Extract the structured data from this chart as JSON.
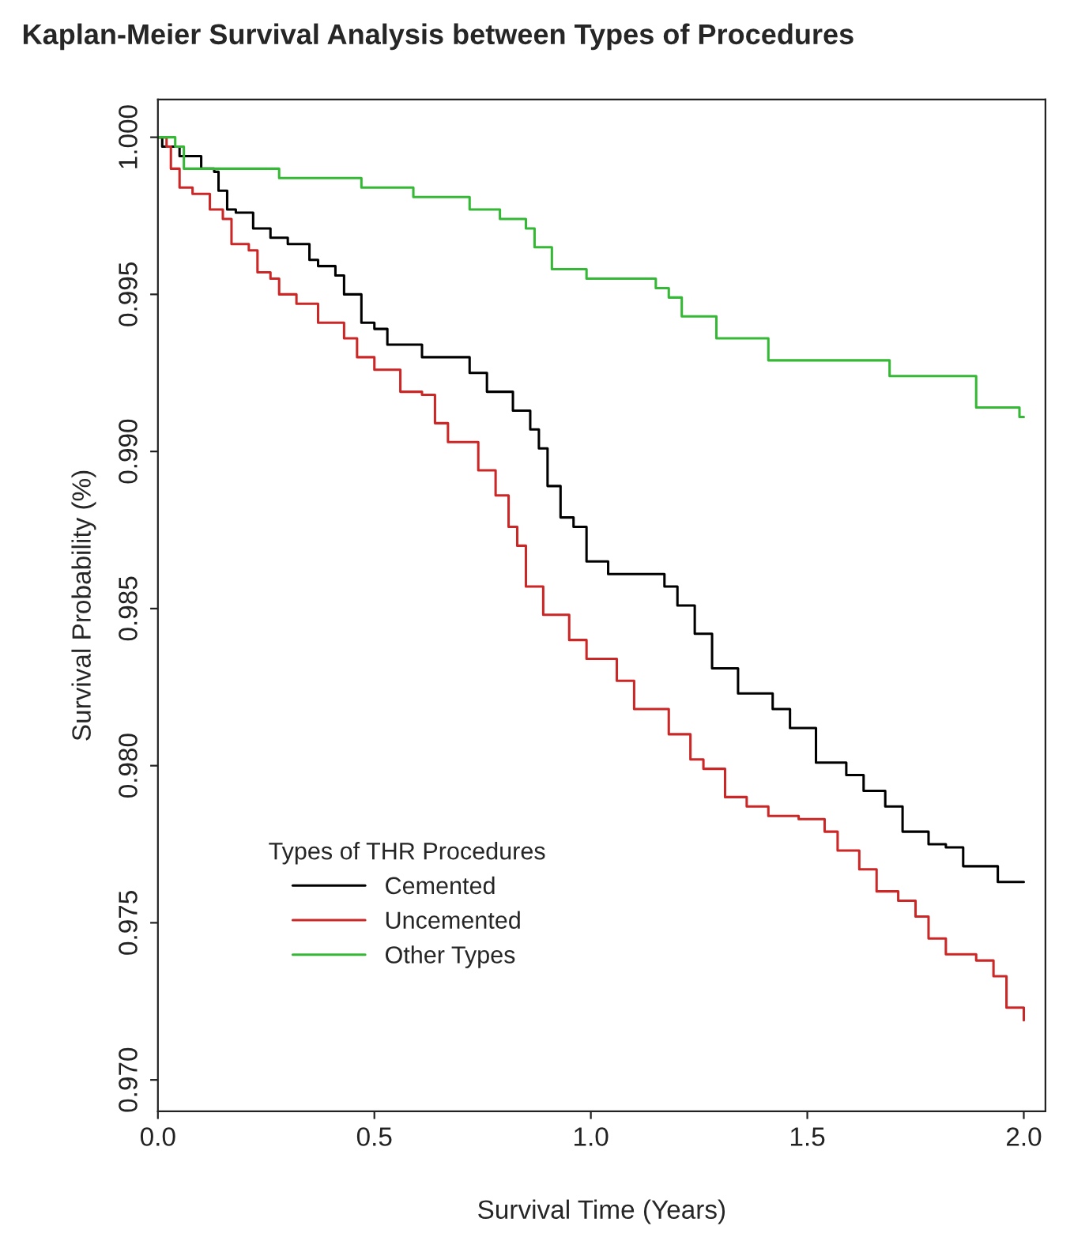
{
  "chart_data": {
    "type": "step",
    "title": "Kaplan-Meier Survival Analysis between Types of Procedures",
    "xlabel": "Survival Time (Years)",
    "ylabel": "Survival Probability (%)",
    "legend_title": "Types of THR Procedures",
    "legend": "bottom left",
    "grid": false,
    "marker": "none",
    "line_style": "solid",
    "xlim": [
      0,
      2.05
    ],
    "xticks": [
      {
        "value": 0,
        "label": "0.0"
      },
      {
        "value": 0.5,
        "label": "0.5"
      },
      {
        "value": 1.0,
        "label": "1.0"
      },
      {
        "value": 1.5,
        "label": "1.5"
      },
      {
        "value": 2.0,
        "label": "2.0"
      }
    ],
    "ylim": [
      0.969,
      1.0012
    ],
    "yticks": [
      {
        "value": 0.97,
        "label": "0.970"
      },
      {
        "value": 0.975,
        "label": "0.975"
      },
      {
        "value": 0.98,
        "label": "0.980"
      },
      {
        "value": 0.985,
        "label": "0.985"
      },
      {
        "value": 0.99,
        "label": "0.990"
      },
      {
        "value": 0.995,
        "label": "0.995"
      },
      {
        "value": 1.0,
        "label": "1.000"
      }
    ],
    "series": [
      {
        "name": "Cemented",
        "color": "#000000",
        "x": [
          0,
          0.01,
          0.05,
          0.1,
          0.13,
          0.14,
          0.16,
          0.18,
          0.22,
          0.26,
          0.3,
          0.35,
          0.37,
          0.41,
          0.43,
          0.47,
          0.5,
          0.53,
          0.61,
          0.72,
          0.76,
          0.82,
          0.86,
          0.88,
          0.9,
          0.93,
          0.96,
          0.99,
          1.04,
          1.17,
          1.2,
          1.24,
          1.28,
          1.34,
          1.42,
          1.46,
          1.52,
          1.59,
          1.63,
          1.68,
          1.72,
          1.78,
          1.82,
          1.86,
          1.94,
          2.0
        ],
        "values": [
          1.0,
          0.9997,
          0.9994,
          0.999,
          0.9989,
          0.9983,
          0.9977,
          0.9976,
          0.9971,
          0.9968,
          0.9966,
          0.9961,
          0.9959,
          0.9956,
          0.995,
          0.9941,
          0.9939,
          0.9934,
          0.993,
          0.9925,
          0.9919,
          0.9913,
          0.9907,
          0.9901,
          0.9889,
          0.9879,
          0.9876,
          0.9865,
          0.9861,
          0.9857,
          0.9851,
          0.9842,
          0.9831,
          0.9823,
          0.9818,
          0.9812,
          0.9801,
          0.9797,
          0.9792,
          0.9787,
          0.9779,
          0.9775,
          0.9774,
          0.9768,
          0.9763,
          0.9763
        ]
      },
      {
        "name": "Uncemented",
        "color": "#cc2727",
        "x": [
          0,
          0.02,
          0.03,
          0.05,
          0.08,
          0.12,
          0.15,
          0.17,
          0.21,
          0.23,
          0.26,
          0.28,
          0.32,
          0.37,
          0.43,
          0.46,
          0.5,
          0.56,
          0.61,
          0.64,
          0.67,
          0.74,
          0.78,
          0.81,
          0.83,
          0.85,
          0.89,
          0.95,
          0.99,
          1.06,
          1.1,
          1.18,
          1.23,
          1.26,
          1.31,
          1.36,
          1.41,
          1.48,
          1.54,
          1.57,
          1.62,
          1.66,
          1.71,
          1.75,
          1.78,
          1.82,
          1.89,
          1.93,
          1.96,
          2.0
        ],
        "values": [
          1.0,
          0.9997,
          0.999,
          0.9984,
          0.9982,
          0.9977,
          0.9974,
          0.9966,
          0.9964,
          0.9957,
          0.9955,
          0.995,
          0.9947,
          0.9941,
          0.9936,
          0.993,
          0.9926,
          0.9919,
          0.9918,
          0.9909,
          0.9903,
          0.9894,
          0.9886,
          0.9876,
          0.987,
          0.9857,
          0.9848,
          0.984,
          0.9834,
          0.9827,
          0.9818,
          0.981,
          0.9802,
          0.9799,
          0.979,
          0.9787,
          0.9784,
          0.9783,
          0.9779,
          0.9773,
          0.9767,
          0.976,
          0.9757,
          0.9752,
          0.9745,
          0.974,
          0.9738,
          0.9733,
          0.9723,
          0.9719
        ]
      },
      {
        "name": "Other Types",
        "color": "#35b835",
        "x": [
          0,
          0.04,
          0.06,
          0.28,
          0.47,
          0.59,
          0.72,
          0.79,
          0.85,
          0.87,
          0.91,
          0.99,
          1.15,
          1.18,
          1.21,
          1.29,
          1.41,
          1.69,
          1.89,
          1.99,
          2.0
        ],
        "values": [
          1.0,
          0.9997,
          0.999,
          0.9987,
          0.9984,
          0.9981,
          0.9977,
          0.9974,
          0.9971,
          0.9965,
          0.9958,
          0.9955,
          0.9952,
          0.9949,
          0.9943,
          0.9936,
          0.9929,
          0.9924,
          0.9914,
          0.9911,
          0.9911
        ]
      }
    ]
  }
}
